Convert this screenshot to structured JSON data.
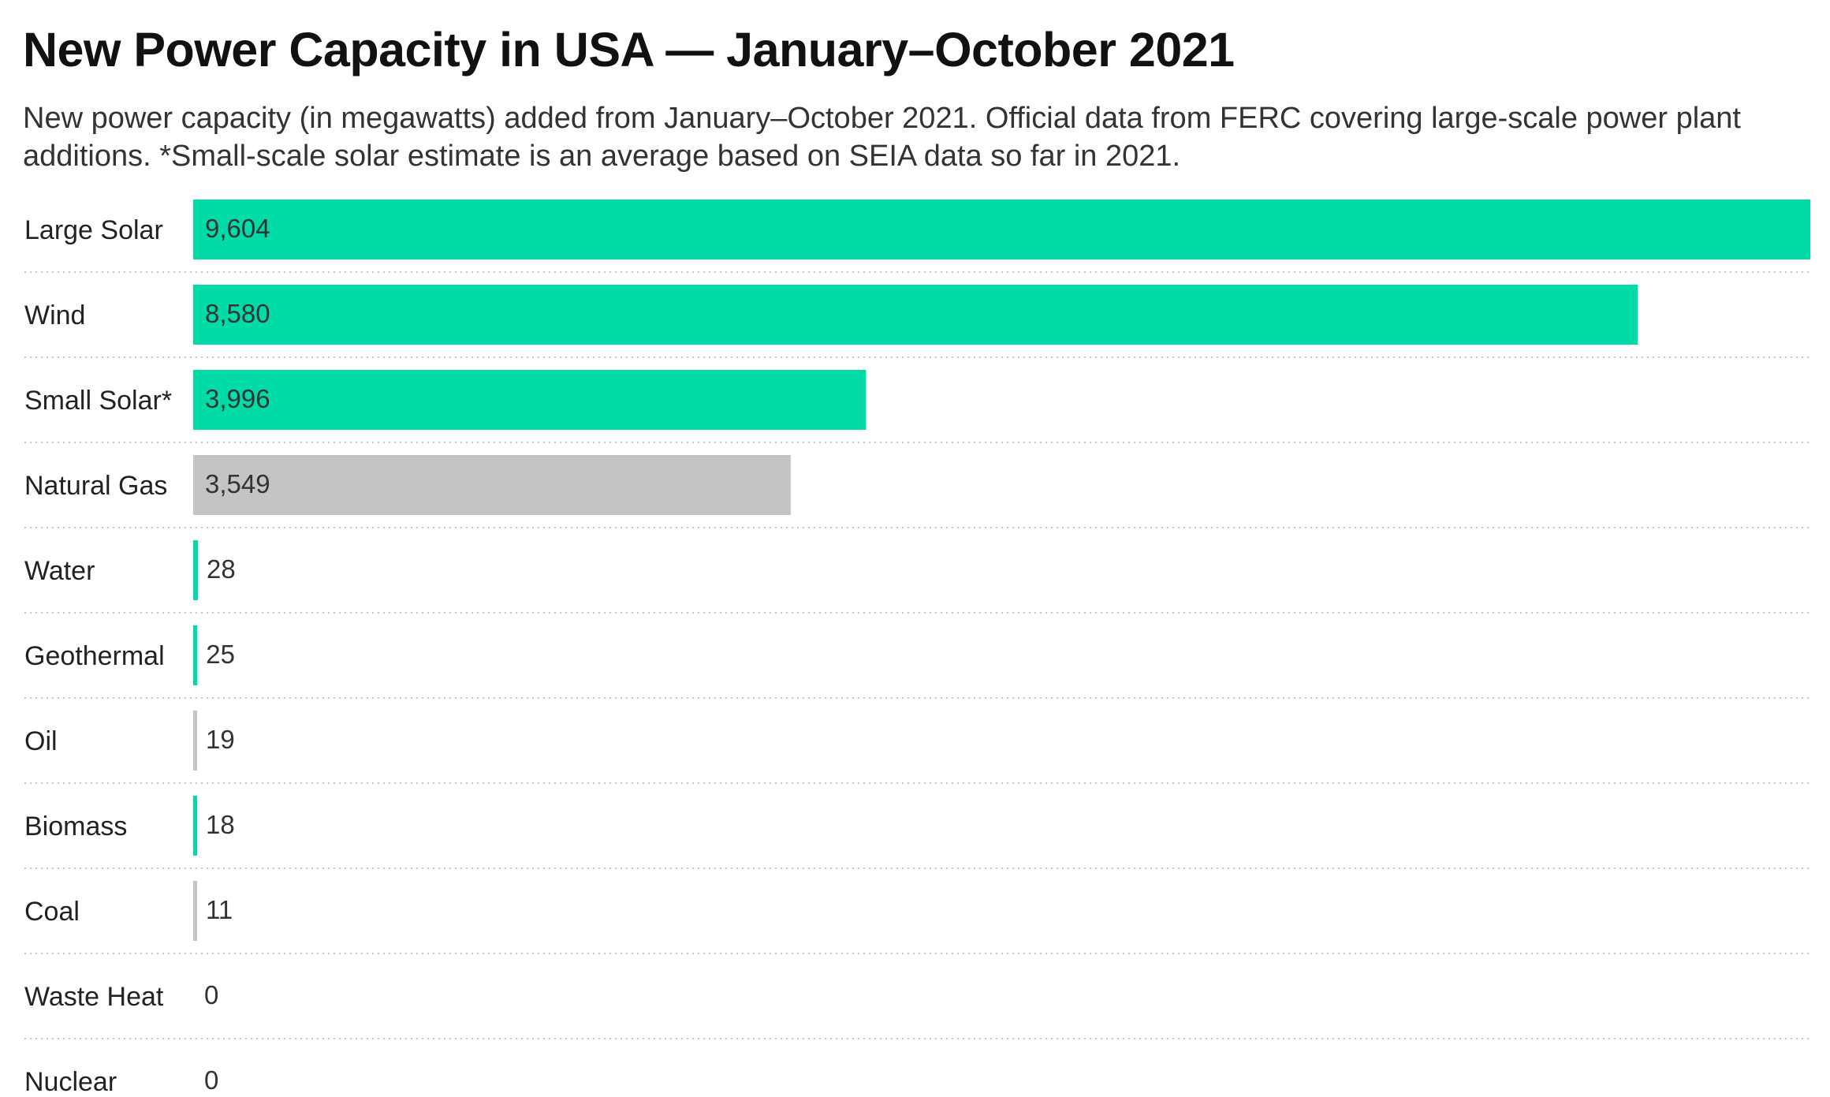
{
  "title": "New Power Capacity in USA — January–October 2021",
  "subtitle": "New power capacity (in megawatts) added from January–October 2021. Official data from FERC covering large-scale power plant additions. *Small-scale solar estimate is an average based on SEIA data so far in 2021.",
  "colors": {
    "renewable": "#00dba8",
    "fossil": "#c4c4c4",
    "separator": "#c6c6c6"
  },
  "chart_data": {
    "type": "bar",
    "orientation": "horizontal",
    "title": "New Power Capacity in USA — January–October 2021",
    "subtitle": "New power capacity (in megawatts) added from January–October 2021. Official data from FERC covering large-scale power plant additions. *Small-scale solar estimate is an average based on SEIA data so far in 2021.",
    "xlabel": "",
    "ylabel": "",
    "xlim": [
      0,
      9604
    ],
    "grid": false,
    "legend": "none",
    "categories": [
      "Large Solar",
      "Wind",
      "Small Solar*",
      "Natural Gas",
      "Water",
      "Geothermal",
      "Oil",
      "Biomass",
      "Coal",
      "Waste Heat",
      "Nuclear"
    ],
    "values": [
      9604,
      8580,
      3996,
      3549,
      28,
      25,
      19,
      18,
      11,
      0,
      0
    ],
    "value_labels": [
      "9,604",
      "8,580",
      "3,996",
      "3,549",
      "28",
      "25",
      "19",
      "18",
      "11",
      "0",
      "0"
    ],
    "bar_colors": [
      "#00dba8",
      "#00dba8",
      "#00dba8",
      "#c4c4c4",
      "#00dba8",
      "#00dba8",
      "#c4c4c4",
      "#00dba8",
      "#c4c4c4",
      "#c4c4c4",
      "#c4c4c4"
    ]
  }
}
